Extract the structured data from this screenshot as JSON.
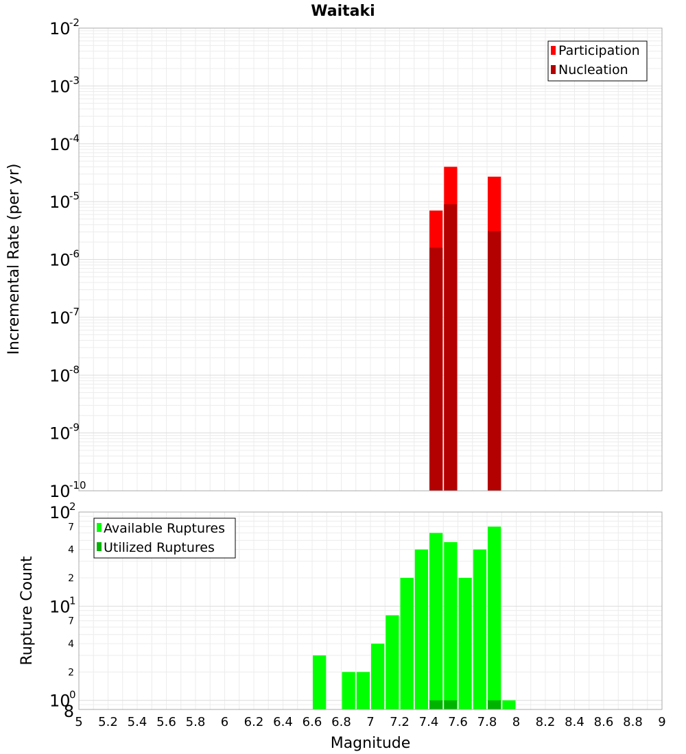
{
  "title": "Waitaki",
  "chart_data": [
    {
      "type": "bar",
      "title": "Waitaki",
      "xlabel": "Magnitude",
      "ylabel": "Incremental Rate (per yr)",
      "yscale": "log",
      "xlim": [
        5,
        9
      ],
      "ylim": [
        1e-10,
        0.01
      ],
      "y_tick_exponents": [
        -10,
        -9,
        -8,
        -7,
        -6,
        -5,
        -4,
        -3,
        -2
      ],
      "grid": true,
      "legend_position": "top-right",
      "bin_width": 0.1,
      "series": [
        {
          "name": "Participation",
          "color": "#ff0000",
          "points": [
            {
              "x": 7.45,
              "y": 7e-06
            },
            {
              "x": 7.55,
              "y": 4e-05
            },
            {
              "x": 7.85,
              "y": 2.7e-05
            }
          ]
        },
        {
          "name": "Nucleation",
          "color": "#b30000",
          "points": [
            {
              "x": 7.45,
              "y": 1.6e-06
            },
            {
              "x": 7.55,
              "y": 9e-06
            },
            {
              "x": 7.85,
              "y": 3.1e-06
            }
          ]
        }
      ]
    },
    {
      "type": "bar",
      "xlabel": "Magnitude",
      "ylabel": "Rupture Count",
      "yscale": "log",
      "xlim": [
        5,
        9
      ],
      "ylim": [
        0.8,
        100
      ],
      "x_ticks": [
        "5",
        "5.2",
        "5.4",
        "5.6",
        "5.8",
        "6",
        "6.2",
        "6.4",
        "6.6",
        "6.8",
        "7",
        "7.2",
        "7.4",
        "7.6",
        "7.8",
        "8",
        "8.2",
        "8.4",
        "8.6",
        "8.8",
        "9"
      ],
      "y_major_exponents": [
        0,
        1,
        2
      ],
      "y_minor_labels": [
        {
          "value": 0.8,
          "label": "8"
        },
        {
          "value": 2,
          "label": "2"
        },
        {
          "value": 4,
          "label": "4"
        },
        {
          "value": 7,
          "label": "7"
        },
        {
          "value": 20,
          "label": "2"
        },
        {
          "value": 40,
          "label": "4"
        },
        {
          "value": 70,
          "label": "7"
        }
      ],
      "grid": true,
      "legend_position": "top-left",
      "bin_width": 0.1,
      "series": [
        {
          "name": "Available Ruptures",
          "color": "#00ff00",
          "points": [
            {
              "x": 6.65,
              "y": 3
            },
            {
              "x": 6.85,
              "y": 2
            },
            {
              "x": 6.95,
              "y": 2
            },
            {
              "x": 7.05,
              "y": 4
            },
            {
              "x": 7.15,
              "y": 8
            },
            {
              "x": 7.25,
              "y": 20
            },
            {
              "x": 7.35,
              "y": 40
            },
            {
              "x": 7.45,
              "y": 60
            },
            {
              "x": 7.55,
              "y": 48
            },
            {
              "x": 7.65,
              "y": 20
            },
            {
              "x": 7.75,
              "y": 40
            },
            {
              "x": 7.85,
              "y": 70
            },
            {
              "x": 7.95,
              "y": 1
            }
          ]
        },
        {
          "name": "Utilized Ruptures",
          "color": "#00b300",
          "points": [
            {
              "x": 7.45,
              "y": 1
            },
            {
              "x": 7.55,
              "y": 1
            },
            {
              "x": 7.85,
              "y": 1
            }
          ]
        }
      ]
    }
  ]
}
